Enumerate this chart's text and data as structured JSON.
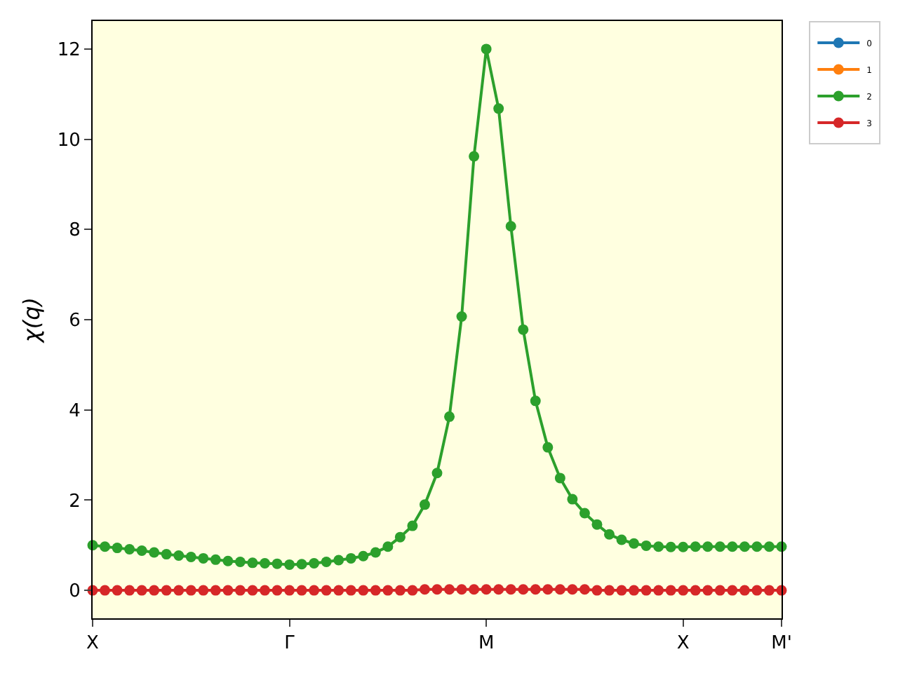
{
  "chart_data": {
    "type": "line",
    "ylabel": "χ(q)",
    "categories": [
      "X",
      null,
      null,
      null,
      null,
      null,
      null,
      null,
      null,
      null,
      null,
      null,
      null,
      null,
      null,
      null,
      "Γ",
      null,
      null,
      null,
      null,
      null,
      null,
      null,
      null,
      null,
      null,
      null,
      null,
      null,
      null,
      null,
      "M",
      null,
      null,
      null,
      null,
      null,
      null,
      null,
      null,
      null,
      null,
      null,
      null,
      null,
      null,
      null,
      "X",
      null,
      null,
      null,
      null,
      null,
      null,
      null,
      "M'"
    ],
    "ylim": [
      -0.62,
      12.62
    ],
    "yticks": [
      0,
      2,
      4,
      6,
      8,
      10,
      12
    ],
    "grid": false,
    "legend": "top right",
    "marker": "circle",
    "line_style": "solid",
    "series": [
      {
        "name": "0",
        "color": "#1f77b4",
        "values": [
          null,
          null,
          null,
          null,
          null,
          null,
          null,
          null,
          null,
          null,
          null,
          null,
          null,
          null,
          null,
          null,
          null,
          null,
          null,
          null,
          null,
          null,
          null,
          null,
          null,
          null,
          null,
          null,
          null,
          null,
          null,
          null,
          null,
          null,
          null,
          null,
          null,
          null,
          null,
          null,
          null,
          null,
          null,
          null,
          null,
          null,
          null,
          null,
          null,
          null,
          null,
          null,
          null,
          null,
          null,
          null,
          null
        ]
      },
      {
        "name": "1",
        "color": "#ff7f0e",
        "values": [
          null,
          null,
          null,
          null,
          null,
          null,
          null,
          null,
          null,
          null,
          null,
          null,
          null,
          null,
          null,
          null,
          null,
          null,
          null,
          null,
          null,
          null,
          null,
          null,
          null,
          null,
          null,
          null,
          null,
          null,
          null,
          null,
          null,
          null,
          null,
          null,
          null,
          null,
          null,
          null,
          null,
          null,
          null,
          null,
          null,
          null,
          null,
          null,
          null,
          null,
          null,
          null,
          null,
          null,
          null,
          null,
          null
        ]
      },
      {
        "name": "2",
        "color": "#2ca02c",
        "values": [
          1.0,
          0.97,
          0.94,
          0.91,
          0.88,
          0.84,
          0.8,
          0.77,
          0.74,
          0.71,
          0.68,
          0.65,
          0.63,
          0.61,
          0.6,
          0.59,
          0.57,
          0.58,
          0.6,
          0.63,
          0.67,
          0.71,
          0.76,
          0.84,
          0.97,
          1.18,
          1.43,
          1.9,
          2.6,
          3.85,
          6.07,
          9.62,
          12.0,
          10.68,
          8.07,
          5.78,
          4.2,
          3.17,
          2.49,
          2.02,
          1.71,
          1.46,
          1.24,
          1.12,
          1.04,
          0.99,
          0.97,
          0.96,
          0.96,
          0.97,
          0.97,
          0.97,
          0.97,
          0.97,
          0.97,
          0.97,
          0.97
        ]
      },
      {
        "name": "3",
        "color": "#d62728",
        "values": [
          0,
          0,
          0,
          0,
          0,
          0,
          0,
          0,
          0,
          0,
          0,
          0,
          0,
          0,
          0,
          0,
          0,
          0,
          0,
          0,
          0,
          0,
          0,
          0,
          0,
          0,
          0,
          0.02,
          0.02,
          0.02,
          0.02,
          0.02,
          0.02,
          0.02,
          0.02,
          0.02,
          0.02,
          0.02,
          0.02,
          0.02,
          0.02,
          0,
          0,
          0,
          0,
          0,
          0,
          0,
          0,
          0,
          0,
          0,
          0,
          0,
          0,
          0,
          0
        ]
      }
    ]
  }
}
